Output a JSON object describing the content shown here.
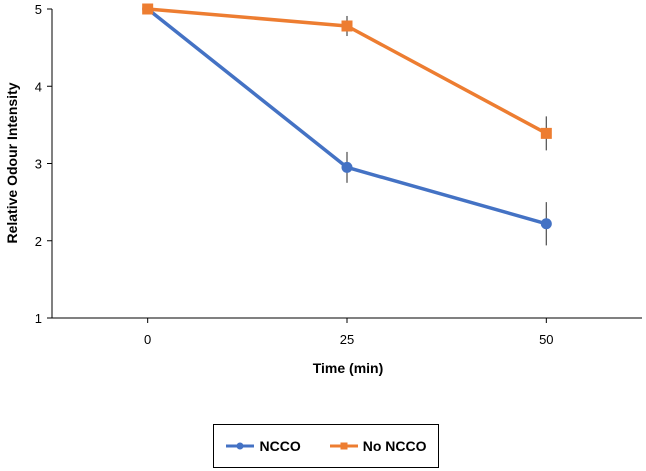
{
  "chart_data": {
    "type": "line",
    "xlabel": "Time (min)",
    "ylabel": "Relative Odour Intensity",
    "x": [
      0,
      25,
      50
    ],
    "x_ticks": [
      "0",
      "25",
      "50"
    ],
    "y_ticks": [
      "1",
      "2",
      "3",
      "4",
      "5"
    ],
    "xlim": [
      -12,
      62
    ],
    "ylim": [
      1,
      5
    ],
    "grid": false,
    "legend_position": "bottom",
    "series": [
      {
        "name": "NCCO",
        "color": "#4472C4",
        "marker": "circle",
        "values": [
          5.0,
          2.95,
          2.22
        ],
        "errors": [
          0.0,
          0.2,
          0.28
        ]
      },
      {
        "name": "No NCCO",
        "color": "#ED7D31",
        "marker": "square",
        "values": [
          5.0,
          4.78,
          3.39
        ],
        "errors": [
          0.0,
          0.13,
          0.22
        ]
      }
    ]
  }
}
